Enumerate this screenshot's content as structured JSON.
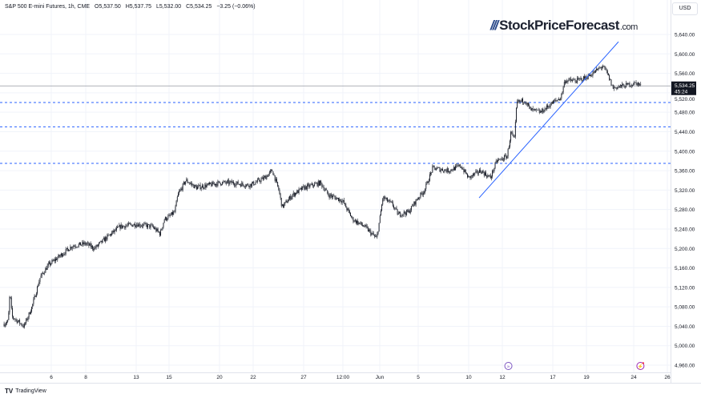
{
  "legend": {
    "symbol": "S&P 500 E-mini Futures, 1h, CME",
    "open": "O5,537.50",
    "high": "H5,537.75",
    "low": "L5,532.00",
    "close": "C5,534.25",
    "change": "−3.25 (−0.06%)"
  },
  "currency": "USD",
  "logo": {
    "main": "StockPriceForecast",
    "suffix": ".com"
  },
  "footer": {
    "brand": "TradingView"
  },
  "price_label": {
    "price": "5,534.25",
    "countdown": "45:24"
  },
  "colors": {
    "candles": "#131722",
    "trendline": "#2962ff",
    "levels": "#2962ff",
    "event_icon": "#7e57c2",
    "event_icon2": "#9c27b0"
  },
  "chart_data": {
    "type": "candlestick",
    "title": "S&P 500 E-mini Futures, 1h, CME",
    "ylim": [
      4940,
      5680
    ],
    "y_ticks": [
      4960,
      5000,
      5040,
      5080,
      5120,
      5160,
      5200,
      5240,
      5280,
      5320,
      5360,
      5400,
      5440,
      5480,
      5520,
      5560,
      5600,
      5640
    ],
    "y_tick_labels": [
      "4,960.00",
      "5,000.00",
      "5,040.00",
      "5,080.00",
      "5,120.00",
      "5,160.00",
      "5,200.00",
      "5,240.00",
      "5,280.00",
      "5,320.00",
      "5,360.00",
      "5,400.00",
      "5,440.00",
      "5,480.00",
      "5,520.00",
      "5,560.00",
      "5,600.00",
      "5,640.00"
    ],
    "x_ticks": [
      {
        "label": "6",
        "day": 6
      },
      {
        "label": "8",
        "day": 8
      },
      {
        "label": "13",
        "day": 13
      },
      {
        "label": "15",
        "day": 15
      },
      {
        "label": "20",
        "day": 20
      },
      {
        "label": "22",
        "day": 22
      },
      {
        "label": "27",
        "day": 27
      },
      {
        "label": "12:00",
        "day": 28.5
      },
      {
        "label": "Jun",
        "day": 32
      },
      {
        "label": "5",
        "day": 36
      },
      {
        "label": "10",
        "day": 41
      },
      {
        "label": "12",
        "day": 43
      },
      {
        "label": "17",
        "day": 48
      },
      {
        "label": "19",
        "day": 50
      },
      {
        "label": "24",
        "day": 55
      },
      {
        "label": "26",
        "day": 57
      }
    ],
    "price_path": [
      [
        3.26,
        5045
      ],
      [
        3.5,
        5050
      ],
      [
        3.6,
        5110
      ],
      [
        3.72,
        5060
      ],
      [
        4.42,
        5040
      ],
      [
        4.88,
        5080
      ],
      [
        5.35,
        5140
      ],
      [
        5.81,
        5165
      ],
      [
        6.51,
        5185
      ],
      [
        7.21,
        5205
      ],
      [
        8,
        5210
      ],
      [
        8.87,
        5200
      ],
      [
        10.22,
        5225
      ],
      [
        11.41,
        5245
      ],
      [
        13,
        5250
      ],
      [
        13.98,
        5245
      ],
      [
        14.46,
        5230
      ],
      [
        14.71,
        5260
      ],
      [
        15.56,
        5275
      ],
      [
        15.87,
        5310
      ],
      [
        16.67,
        5340
      ],
      [
        17.7,
        5325
      ],
      [
        18.89,
        5330
      ],
      [
        20.05,
        5335
      ],
      [
        20.76,
        5335
      ],
      [
        21.71,
        5330
      ],
      [
        23.11,
        5345
      ],
      [
        23.9,
        5360
      ],
      [
        24.54,
        5320
      ],
      [
        24.86,
        5285
      ],
      [
        25.89,
        5310
      ],
      [
        27.03,
        5325
      ],
      [
        27.64,
        5335
      ],
      [
        27.95,
        5310
      ],
      [
        28.41,
        5300
      ],
      [
        29.42,
        5260
      ],
      [
        30.56,
        5245
      ],
      [
        31.7,
        5220
      ],
      [
        32.33,
        5305
      ],
      [
        33.33,
        5290
      ],
      [
        33.92,
        5270
      ],
      [
        35,
        5275
      ],
      [
        35.83,
        5300
      ],
      [
        36.63,
        5320
      ],
      [
        37.43,
        5365
      ],
      [
        39.02,
        5360
      ],
      [
        40.21,
        5370
      ],
      [
        41,
        5345
      ],
      [
        41.71,
        5360
      ],
      [
        42.29,
        5345
      ],
      [
        42.67,
        5380
      ],
      [
        43.48,
        5390
      ],
      [
        43.87,
        5440
      ],
      [
        44.19,
        5420
      ],
      [
        44.43,
        5500
      ],
      [
        45.22,
        5505
      ],
      [
        45.78,
        5485
      ],
      [
        46.81,
        5480
      ],
      [
        48,
        5500
      ],
      [
        48.48,
        5510
      ],
      [
        48.71,
        5545
      ],
      [
        49.43,
        5545
      ],
      [
        50.68,
        5560
      ],
      [
        51.69,
        5575
      ],
      [
        52.2,
        5560
      ],
      [
        52.8,
        5530
      ],
      [
        54.07,
        5535
      ],
      [
        55.19,
        5540
      ],
      [
        55.43,
        5534.25
      ]
    ],
    "last_price": 5534.25,
    "horizontal_levels": [
      5500,
      5450,
      5375
    ],
    "trendline": [
      [
        41.62,
        5304
      ],
      [
        53.39,
        5625
      ]
    ],
    "events": [
      {
        "day": 43.6,
        "type": "economic-event"
      },
      {
        "day": 55.4,
        "type": "dividend-event"
      }
    ],
    "grid": true
  }
}
